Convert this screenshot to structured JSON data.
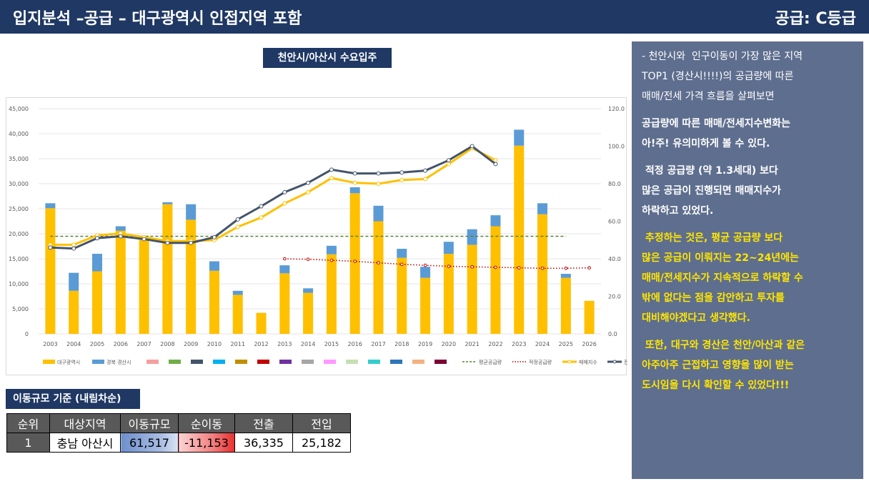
{
  "header": {
    "title": "입지분석 –공급 – 대구광역시 인접지역 포함",
    "grade": "공급: C등급"
  },
  "chart_title": "천안시/아산시 수요입주",
  "chart_data": {
    "type": "bar",
    "categories": [
      "2003",
      "2004",
      "2005",
      "2006",
      "2007",
      "2008",
      "2009",
      "2010",
      "2011",
      "2012",
      "2013",
      "2014",
      "2015",
      "2016",
      "2017",
      "2018",
      "2019",
      "2020",
      "2021",
      "2022",
      "2023",
      "2024",
      "2025",
      "2026"
    ],
    "series": [
      {
        "name": "대구광역시",
        "type": "stacked-bar",
        "axis": "left",
        "color": "#ffc000",
        "values": [
          25100,
          8600,
          12500,
          20600,
          19600,
          25900,
          22800,
          12600,
          7800,
          4200,
          12100,
          8200,
          15900,
          28100,
          22500,
          15200,
          11200,
          16000,
          17800,
          21500,
          37600,
          23900,
          11200,
          6600
        ]
      },
      {
        "name": "경북 경산시",
        "type": "stacked-bar",
        "axis": "left",
        "color": "#5b9bd5",
        "values": [
          1000,
          3600,
          3500,
          900,
          0,
          400,
          3100,
          1900,
          800,
          0,
          1600,
          900,
          1700,
          1200,
          3100,
          1800,
          2200,
          2400,
          3100,
          2200,
          3200,
          2200,
          800,
          0
        ]
      },
      {
        "name": "평균공급량",
        "type": "line",
        "axis": "left",
        "color": "#548235",
        "style": "dashed",
        "values": [
          19500,
          19500,
          19500,
          19500,
          19500,
          19500,
          19500,
          19500,
          19500,
          19500,
          19500,
          19500,
          19500,
          19500,
          19500,
          19500,
          19500,
          19500,
          19500,
          19500,
          19500,
          19500,
          19500,
          null
        ]
      },
      {
        "name": "적정공급량",
        "type": "line",
        "axis": "left",
        "color": "#c00000",
        "style": "dotted",
        "values": [
          null,
          null,
          null,
          null,
          null,
          null,
          null,
          null,
          null,
          null,
          15000,
          14900,
          14700,
          14500,
          14200,
          13900,
          13700,
          13500,
          13400,
          13300,
          13200,
          13100,
          13100,
          13200
        ]
      },
      {
        "name": "매매지수",
        "type": "line",
        "axis": "right",
        "color": "#ffc000",
        "values": [
          47.5,
          47.5,
          52.5,
          53.5,
          51.5,
          49.5,
          49.5,
          50.0,
          57.0,
          62.0,
          69.5,
          75.5,
          83.0,
          80.5,
          80.0,
          82.0,
          82.5,
          90.5,
          99.0,
          92.5,
          null,
          null,
          null,
          null
        ]
      },
      {
        "name": "전세지수",
        "type": "line",
        "axis": "right",
        "color": "#44546a",
        "values": [
          46.0,
          45.5,
          51.0,
          52.0,
          50.5,
          48.5,
          48.5,
          51.5,
          61.0,
          68.0,
          75.5,
          80.5,
          87.5,
          85.5,
          85.5,
          86.0,
          87.0,
          92.5,
          100.0,
          90.5,
          null,
          null,
          null,
          null
        ]
      }
    ],
    "legend_extra": [
      {
        "color": "#f4a0a0"
      },
      {
        "color": "#70ad47"
      },
      {
        "color": "#44546a"
      },
      {
        "color": "#00b0f0"
      },
      {
        "color": "#bf8f00"
      },
      {
        "color": "#c00000"
      },
      {
        "color": "#7030a0"
      },
      {
        "color": "#a6a6a6"
      },
      {
        "color": "#ff99ff"
      },
      {
        "color": "#c5e0b4"
      },
      {
        "color": "#33cccc"
      },
      {
        "color": "#2e75b6"
      },
      {
        "color": "#f4b183"
      },
      {
        "color": "#7b0033"
      }
    ],
    "y_left": {
      "min": 0,
      "max": 45000,
      "step": 5000,
      "ticks": [
        "0",
        "5,000",
        "10,000",
        "15,000",
        "20,000",
        "25,000",
        "30,000",
        "35,000",
        "40,000",
        "45,000"
      ]
    },
    "y_right": {
      "min": 0,
      "max": 120,
      "step": 20,
      "ticks": [
        "0.0",
        "20.0",
        "40.0",
        "60.0",
        "80.0",
        "100.0",
        "120.0"
      ]
    },
    "grid": true,
    "legend_position": "bottom"
  },
  "panel": {
    "lines": [
      {
        "text": "- 천안시와  인구이동이 가장 많은 지역",
        "style": "plain"
      },
      {
        "text": "TOP1 (경산시!!!!)의 공급량에 따른",
        "style": "plain"
      },
      {
        "text": "매매/전세 가격 흐름을 살펴보면",
        "style": "plain"
      },
      {
        "text": "",
        "style": "gap"
      },
      {
        "text": "공급량에 따른 매매/전세지수변화는",
        "style": "bold"
      },
      {
        "text": "아!주! 유의미하게 볼 수 있다.",
        "style": "bold"
      },
      {
        "text": "",
        "style": "gap"
      },
      {
        "text": " 적정 공급량 (약 1.3세대) 보다",
        "style": "bold"
      },
      {
        "text": "많은 공급이 진행되면 매매지수가",
        "style": "bold"
      },
      {
        "text": "하락하고 있었다.",
        "style": "bold"
      },
      {
        "text": "",
        "style": "gap"
      },
      {
        "text": " 추정하는 것은, 평균 공급량 보다",
        "style": "yellow"
      },
      {
        "text": "많은 공급이 이뤄지는 22~24년에는",
        "style": "yellow"
      },
      {
        "text": "매매/전세지수가 지속적으로 하락할 수",
        "style": "yellow"
      },
      {
        "text": "밖에 없다는 점을 감안하고 투자를",
        "style": "yellow"
      },
      {
        "text": "대비해야겠다고 생각했다.",
        "style": "yellow"
      },
      {
        "text": "",
        "style": "gap"
      },
      {
        "text": " 또한, 대구와 경산은 천안/아산과 같은",
        "style": "yellow"
      },
      {
        "text": "아주아주 근접하고 영향을 많이 받는",
        "style": "yellow"
      },
      {
        "text": "도시임을 다시 확인할 수 있었다!!!",
        "style": "yellow"
      }
    ]
  },
  "table": {
    "title": "이동규모 기준 (내림차순)",
    "headers": [
      "순위",
      "대상지역",
      "이동규모",
      "순이동",
      "전출",
      "전입"
    ],
    "row": {
      "rank": "1",
      "region": "충남 아산시",
      "volume": "61,517",
      "net": "-11,153",
      "out": "36,335",
      "in": "25,182"
    }
  }
}
